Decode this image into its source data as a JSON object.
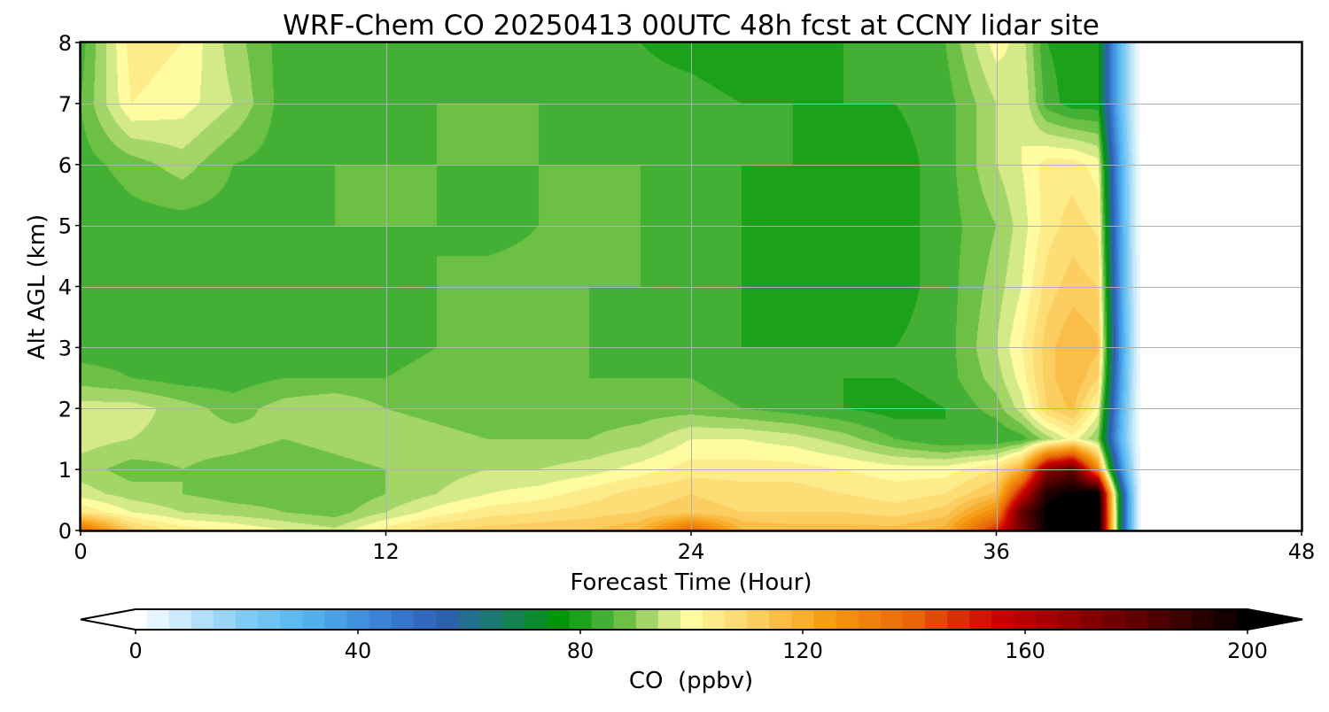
{
  "chart_data": {
    "type": "heatmap",
    "title": "WRF-Chem CO  20250413 00UTC 48h fcst at CCNY lidar site",
    "xlabel": "Forecast Time (Hour)",
    "ylabel": "Alt AGL (km)",
    "xlim": [
      0,
      48
    ],
    "ylim": [
      0,
      8
    ],
    "x_ticks": [
      0,
      12,
      24,
      36,
      48
    ],
    "y_ticks": [
      0,
      1,
      2,
      3,
      4,
      5,
      6,
      7,
      8
    ],
    "grid": true,
    "colorbar": {
      "label": "CO  (ppbv)",
      "range": [
        0,
        200
      ],
      "ticks": [
        0,
        40,
        80,
        120,
        160,
        200
      ],
      "extend": "both",
      "stops": [
        {
          "value": 0,
          "color": "#ffffff"
        },
        {
          "value": 20,
          "color": "#7fcbf5"
        },
        {
          "value": 30,
          "color": "#56b7f0"
        },
        {
          "value": 45,
          "color": "#3a7fd6"
        },
        {
          "value": 55,
          "color": "#2e5fb4"
        },
        {
          "value": 65,
          "color": "#1a7c6c"
        },
        {
          "value": 77,
          "color": "#009600"
        },
        {
          "value": 82,
          "color": "#2ea82e"
        },
        {
          "value": 88,
          "color": "#6cc044"
        },
        {
          "value": 94,
          "color": "#bfe07a"
        },
        {
          "value": 100,
          "color": "#fffba0"
        },
        {
          "value": 110,
          "color": "#fdd56c"
        },
        {
          "value": 125,
          "color": "#f59a10"
        },
        {
          "value": 140,
          "color": "#e8650a"
        },
        {
          "value": 155,
          "color": "#cc0000"
        },
        {
          "value": 170,
          "color": "#8b0000"
        },
        {
          "value": 185,
          "color": "#4a0000"
        },
        {
          "value": 200,
          "color": "#000000"
        }
      ]
    },
    "field": {
      "units": "ppbv",
      "x_hours": [
        0,
        2,
        4,
        6,
        8,
        10,
        12,
        14,
        16,
        18,
        20,
        22,
        24,
        26,
        28,
        30,
        32,
        34,
        36,
        37,
        38,
        39,
        40
      ],
      "y_km": [
        0,
        0.3,
        0.6,
        1.0,
        1.5,
        2.0,
        2.5,
        3.0,
        4.0,
        5.0,
        6.0,
        7.0,
        8.0
      ],
      "values": [
        [
          140,
          112,
          104,
          102,
          98,
          95,
          104,
          110,
          112,
          113,
          114,
          118,
          140,
          118,
          116,
          116,
          116,
          120,
          150,
          175,
          200,
          205,
          210
        ],
        [
          106,
          98,
          94,
          92,
          90,
          88,
          94,
          100,
          104,
          106,
          108,
          110,
          112,
          110,
          110,
          110,
          108,
          112,
          130,
          180,
          200,
          205,
          210
        ],
        [
          96,
          92,
          90,
          88,
          88,
          86,
          90,
          94,
          98,
          100,
          104,
          108,
          110,
          108,
          108,
          106,
          104,
          106,
          115,
          155,
          195,
          200,
          205
        ],
        [
          92,
          88,
          90,
          88,
          86,
          88,
          90,
          92,
          94,
          94,
          96,
          100,
          104,
          104,
          104,
          102,
          100,
          100,
          106,
          120,
          170,
          180,
          130
        ],
        [
          96,
          94,
          92,
          92,
          90,
          92,
          94,
          92,
          90,
          90,
          90,
          92,
          98,
          98,
          96,
          92,
          86,
          82,
          82,
          84,
          92,
          100,
          90
        ],
        [
          96,
          96,
          92,
          88,
          92,
          94,
          90,
          88,
          86,
          86,
          88,
          88,
          88,
          86,
          84,
          82,
          80,
          82,
          88,
          96,
          110,
          115,
          100
        ],
        [
          88,
          86,
          84,
          84,
          86,
          86,
          86,
          88,
          88,
          86,
          86,
          86,
          86,
          84,
          82,
          82,
          82,
          84,
          92,
          100,
          112,
          118,
          110
        ],
        [
          84,
          84,
          84,
          84,
          84,
          84,
          84,
          86,
          88,
          88,
          86,
          84,
          84,
          82,
          82,
          82,
          82,
          84,
          94,
          102,
          112,
          118,
          115
        ],
        [
          84,
          84,
          84,
          84,
          84,
          84,
          84,
          86,
          88,
          88,
          86,
          86,
          84,
          82,
          80,
          78,
          80,
          84,
          92,
          98,
          108,
          112,
          110
        ],
        [
          82,
          84,
          84,
          84,
          86,
          86,
          86,
          86,
          84,
          86,
          86,
          86,
          84,
          82,
          80,
          79,
          80,
          84,
          90,
          96,
          104,
          108,
          105
        ],
        [
          84,
          88,
          92,
          86,
          84,
          86,
          86,
          86,
          86,
          86,
          86,
          86,
          84,
          82,
          82,
          80,
          80,
          84,
          94,
          98,
          104,
          104,
          100
        ],
        [
          86,
          102,
          100,
          94,
          84,
          84,
          84,
          86,
          86,
          86,
          84,
          84,
          84,
          82,
          82,
          82,
          82,
          84,
          94,
          98,
          84,
          80,
          80
        ],
        [
          84,
          104,
          102,
          92,
          84,
          84,
          84,
          84,
          84,
          84,
          84,
          82,
          80,
          78,
          80,
          82,
          84,
          86,
          100,
          96,
          82,
          80,
          80
        ]
      ]
    }
  }
}
